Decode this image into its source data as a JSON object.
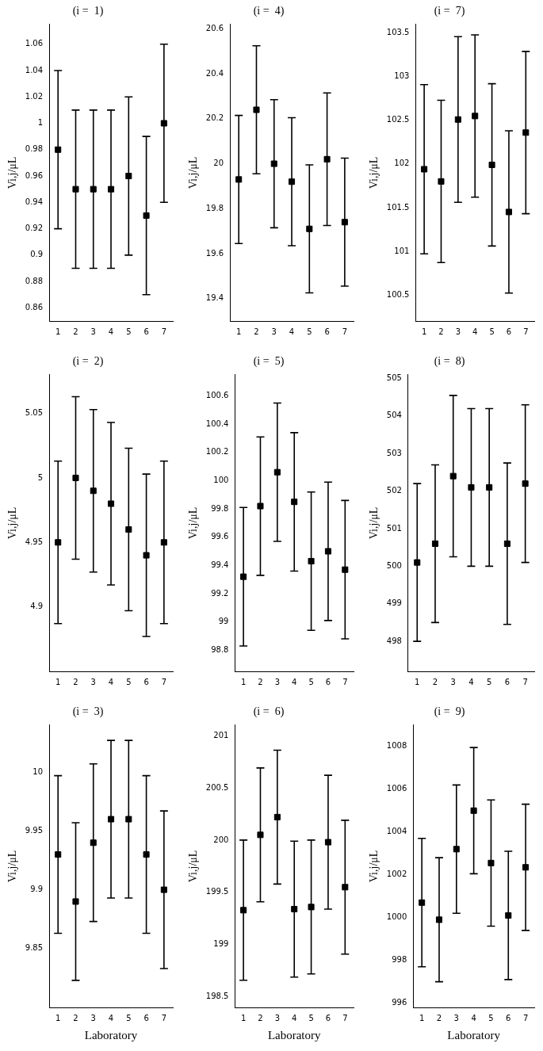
{
  "chart_data": [
    {
      "type": "scatter",
      "title": "(i =  1)",
      "y_label": "Vi,j/μL",
      "x": [
        1,
        2,
        3,
        4,
        5,
        6,
        7
      ],
      "values": [
        0.98,
        0.95,
        0.95,
        0.95,
        0.96,
        0.93,
        1.0
      ],
      "errors": [
        0.06,
        0.06,
        0.06,
        0.06,
        0.06,
        0.06,
        0.06
      ],
      "color": "#000000",
      "marker": "square",
      "grid": false,
      "xlim": [
        0.5,
        7.5
      ],
      "xticks": [
        1,
        2,
        3,
        4,
        5,
        6,
        7
      ],
      "ylim": [
        0.85,
        1.075
      ],
      "yticks": [
        0.86,
        0.88,
        0.9,
        0.92,
        0.94,
        0.96,
        0.98,
        1,
        1.02,
        1.04,
        1.06
      ]
    },
    {
      "type": "scatter",
      "title": "(i =  4)",
      "y_label": "Vi,j/μL",
      "x": [
        1,
        2,
        3,
        4,
        5,
        6,
        7
      ],
      "values": [
        19.93,
        20.24,
        20.0,
        19.92,
        19.71,
        20.02,
        19.74
      ],
      "errors": [
        0.285,
        0.285,
        0.285,
        0.285,
        0.285,
        0.295,
        0.285
      ],
      "color": "#000000",
      "marker": "square",
      "grid": false,
      "xlim": [
        0.5,
        7.5
      ],
      "xticks": [
        1,
        2,
        3,
        4,
        5,
        6,
        7
      ],
      "ylim": [
        19.3,
        20.62
      ],
      "yticks": [
        19.4,
        19.6,
        19.8,
        20,
        20.2,
        20.4,
        20.6
      ]
    },
    {
      "type": "scatter",
      "title": "(i =  7)",
      "y_label": "Vi,j/μL",
      "x": [
        1,
        2,
        3,
        4,
        5,
        6,
        7
      ],
      "values": [
        101.94,
        101.8,
        102.51,
        102.55,
        101.99,
        101.45,
        102.36
      ],
      "errors": [
        0.97,
        0.93,
        0.95,
        0.93,
        0.93,
        0.93,
        0.93
      ],
      "color": "#000000",
      "marker": "square",
      "grid": false,
      "xlim": [
        0.5,
        7.5
      ],
      "xticks": [
        1,
        2,
        3,
        4,
        5,
        6,
        7
      ],
      "ylim": [
        100.2,
        103.6
      ],
      "yticks": [
        100.5,
        101,
        101.5,
        102,
        102.5,
        103,
        103.5
      ]
    },
    {
      "type": "scatter",
      "title": "(i =  2)",
      "y_label": "Vi,j/μL",
      "x": [
        1,
        2,
        3,
        4,
        5,
        6,
        7
      ],
      "values": [
        4.95,
        5.0,
        4.99,
        4.98,
        4.96,
        4.94,
        4.95
      ],
      "errors": [
        0.063,
        0.063,
        0.063,
        0.063,
        0.063,
        0.063,
        0.063
      ],
      "color": "#000000",
      "marker": "square",
      "grid": false,
      "xlim": [
        0.5,
        7.5
      ],
      "xticks": [
        1,
        2,
        3,
        4,
        5,
        6,
        7
      ],
      "ylim": [
        4.85,
        5.08
      ],
      "yticks": [
        4.9,
        4.95,
        5,
        5.05
      ]
    },
    {
      "type": "scatter",
      "title": "(i =  5)",
      "y_label": "Vi,j/μL",
      "x": [
        1,
        2,
        3,
        4,
        5,
        6,
        7
      ],
      "values": [
        99.32,
        99.82,
        100.06,
        99.85,
        99.43,
        99.5,
        99.37
      ],
      "errors": [
        0.49,
        0.49,
        0.49,
        0.49,
        0.49,
        0.49,
        0.49
      ],
      "color": "#000000",
      "marker": "square",
      "grid": false,
      "xlim": [
        0.5,
        7.5
      ],
      "xticks": [
        1,
        2,
        3,
        4,
        5,
        6,
        7
      ],
      "ylim": [
        98.65,
        100.75
      ],
      "yticks": [
        98.8,
        99,
        99.2,
        99.4,
        99.6,
        99.8,
        100,
        100.2,
        100.4,
        100.6
      ]
    },
    {
      "type": "scatter",
      "title": "(i =  8)",
      "y_label": "Vi,j/μL",
      "x": [
        1,
        2,
        3,
        4,
        5,
        6,
        7
      ],
      "values": [
        500.1,
        500.6,
        502.4,
        502.1,
        502.1,
        500.6,
        502.2
      ],
      "errors": [
        2.1,
        2.1,
        2.15,
        2.1,
        2.1,
        2.15,
        2.1
      ],
      "color": "#000000",
      "marker": "square",
      "grid": false,
      "xlim": [
        0.5,
        7.5
      ],
      "xticks": [
        1,
        2,
        3,
        4,
        5,
        6,
        7
      ],
      "ylim": [
        497.2,
        505.1
      ],
      "yticks": [
        498,
        499,
        500,
        501,
        502,
        503,
        504,
        505
      ]
    },
    {
      "type": "scatter",
      "title": "(i =  3)",
      "y_label": "Vi,j/μL",
      "x_label": "Laboratory",
      "x": [
        1,
        2,
        3,
        4,
        5,
        6,
        7
      ],
      "values": [
        9.93,
        9.89,
        9.94,
        9.96,
        9.96,
        9.93,
        9.9
      ],
      "errors": [
        0.067,
        0.067,
        0.067,
        0.067,
        0.067,
        0.067,
        0.067
      ],
      "color": "#000000",
      "marker": "square",
      "grid": false,
      "xlim": [
        0.5,
        7.5
      ],
      "xticks": [
        1,
        2,
        3,
        4,
        5,
        6,
        7
      ],
      "ylim": [
        9.8,
        10.04
      ],
      "yticks": [
        9.85,
        9.9,
        9.95,
        10
      ]
    },
    {
      "type": "scatter",
      "title": "(i =  6)",
      "y_label": "Vi,j/μL",
      "x_label": "Laboratory",
      "x": [
        1,
        2,
        3,
        4,
        5,
        6,
        7
      ],
      "values": [
        199.33,
        200.05,
        200.22,
        199.34,
        199.36,
        199.98,
        199.55
      ],
      "errors": [
        0.67,
        0.64,
        0.64,
        0.65,
        0.64,
        0.64,
        0.64
      ],
      "color": "#000000",
      "marker": "square",
      "grid": false,
      "xlim": [
        0.5,
        7.5
      ],
      "xticks": [
        1,
        2,
        3,
        4,
        5,
        6,
        7
      ],
      "ylim": [
        198.4,
        201.1
      ],
      "yticks": [
        198.5,
        199,
        199.5,
        200,
        200.5,
        201
      ]
    },
    {
      "type": "scatter",
      "title": "(i =  9)",
      "y_label": "Vi,j/μL",
      "x_label": "Laboratory",
      "x": [
        1,
        2,
        3,
        4,
        5,
        6,
        7
      ],
      "values": [
        1000.7,
        999.9,
        1003.2,
        1005.0,
        1002.55,
        1000.1,
        1002.35
      ],
      "errors": [
        3.0,
        2.9,
        3.0,
        2.95,
        2.95,
        3.0,
        2.95
      ],
      "color": "#000000",
      "marker": "square",
      "grid": false,
      "xlim": [
        0.5,
        7.5
      ],
      "xticks": [
        1,
        2,
        3,
        4,
        5,
        6,
        7
      ],
      "ylim": [
        995.8,
        1009
      ],
      "yticks": [
        996,
        998,
        1000,
        1002,
        1004,
        1006,
        1008
      ]
    }
  ]
}
